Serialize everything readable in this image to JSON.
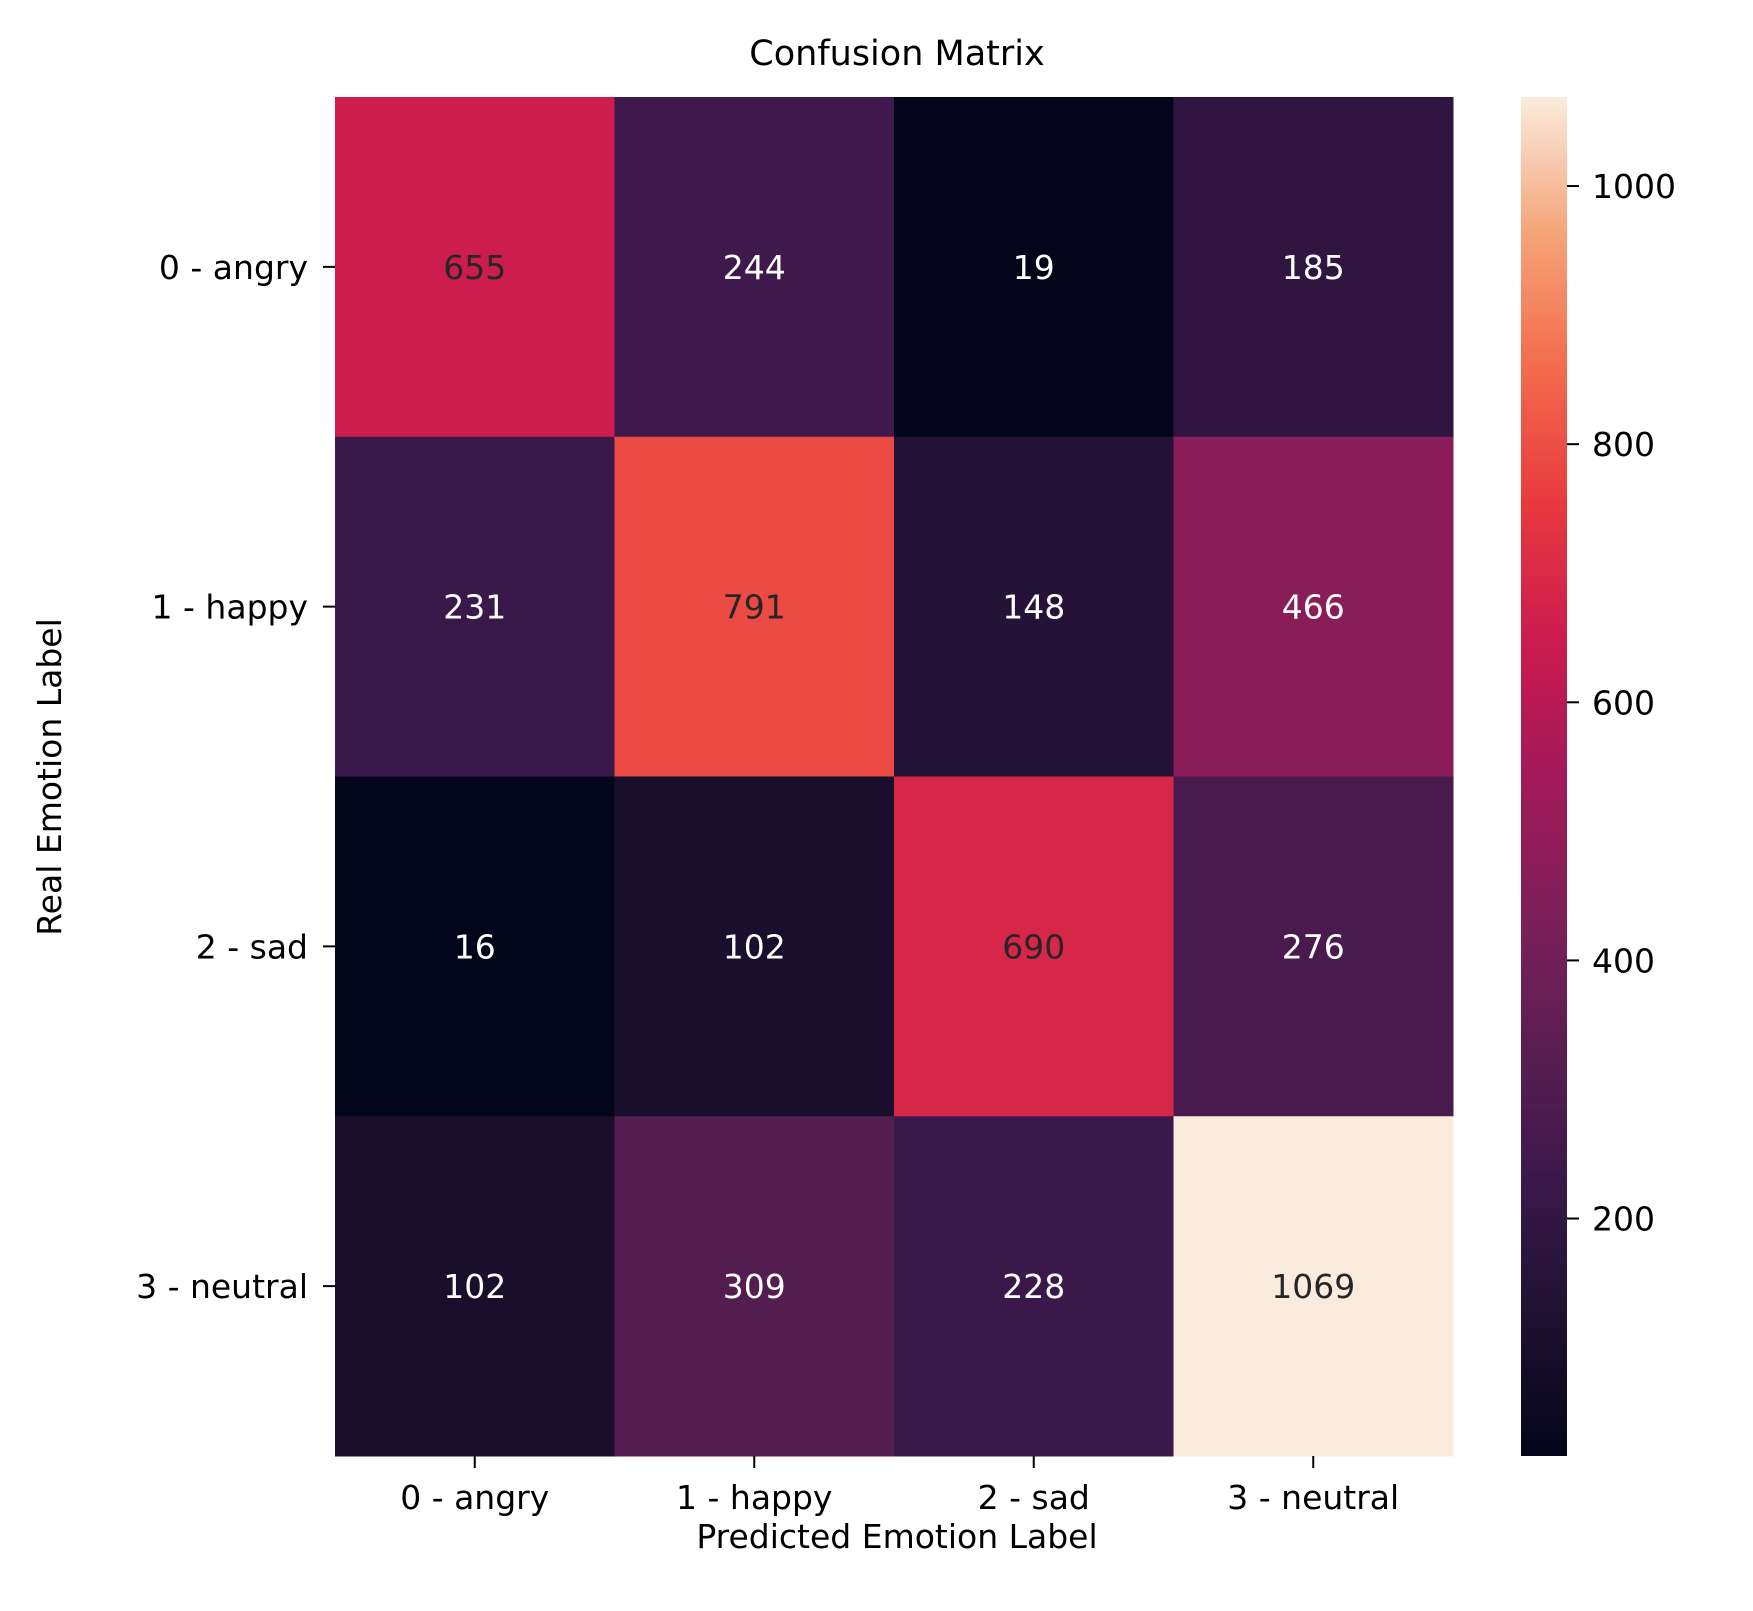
{
  "chart_data": {
    "type": "heatmap",
    "title": "Confusion Matrix",
    "xlabel": "Predicted Emotion Label",
    "ylabel": "Real Emotion Label",
    "x_categories": [
      "0 - angry",
      "1 - happy",
      "2 - sad",
      "3 - neutral"
    ],
    "y_categories": [
      "0 - angry",
      "1 - happy",
      "2 - sad",
      "3 - neutral"
    ],
    "values": [
      [
        655,
        244,
        19,
        185
      ],
      [
        231,
        791,
        148,
        466
      ],
      [
        16,
        102,
        690,
        276
      ],
      [
        102,
        309,
        228,
        1069
      ]
    ],
    "colormap": "rocket",
    "color_range": [
      16,
      1069
    ],
    "colorbar_ticks": [
      200,
      400,
      600,
      800,
      1000
    ],
    "colorbar_tick_labels": [
      "200",
      "400",
      "600",
      "800",
      "1000"
    ],
    "annotation_colors": {
      "dark_cells": "#ffffff",
      "light_cells": "#262626"
    }
  }
}
